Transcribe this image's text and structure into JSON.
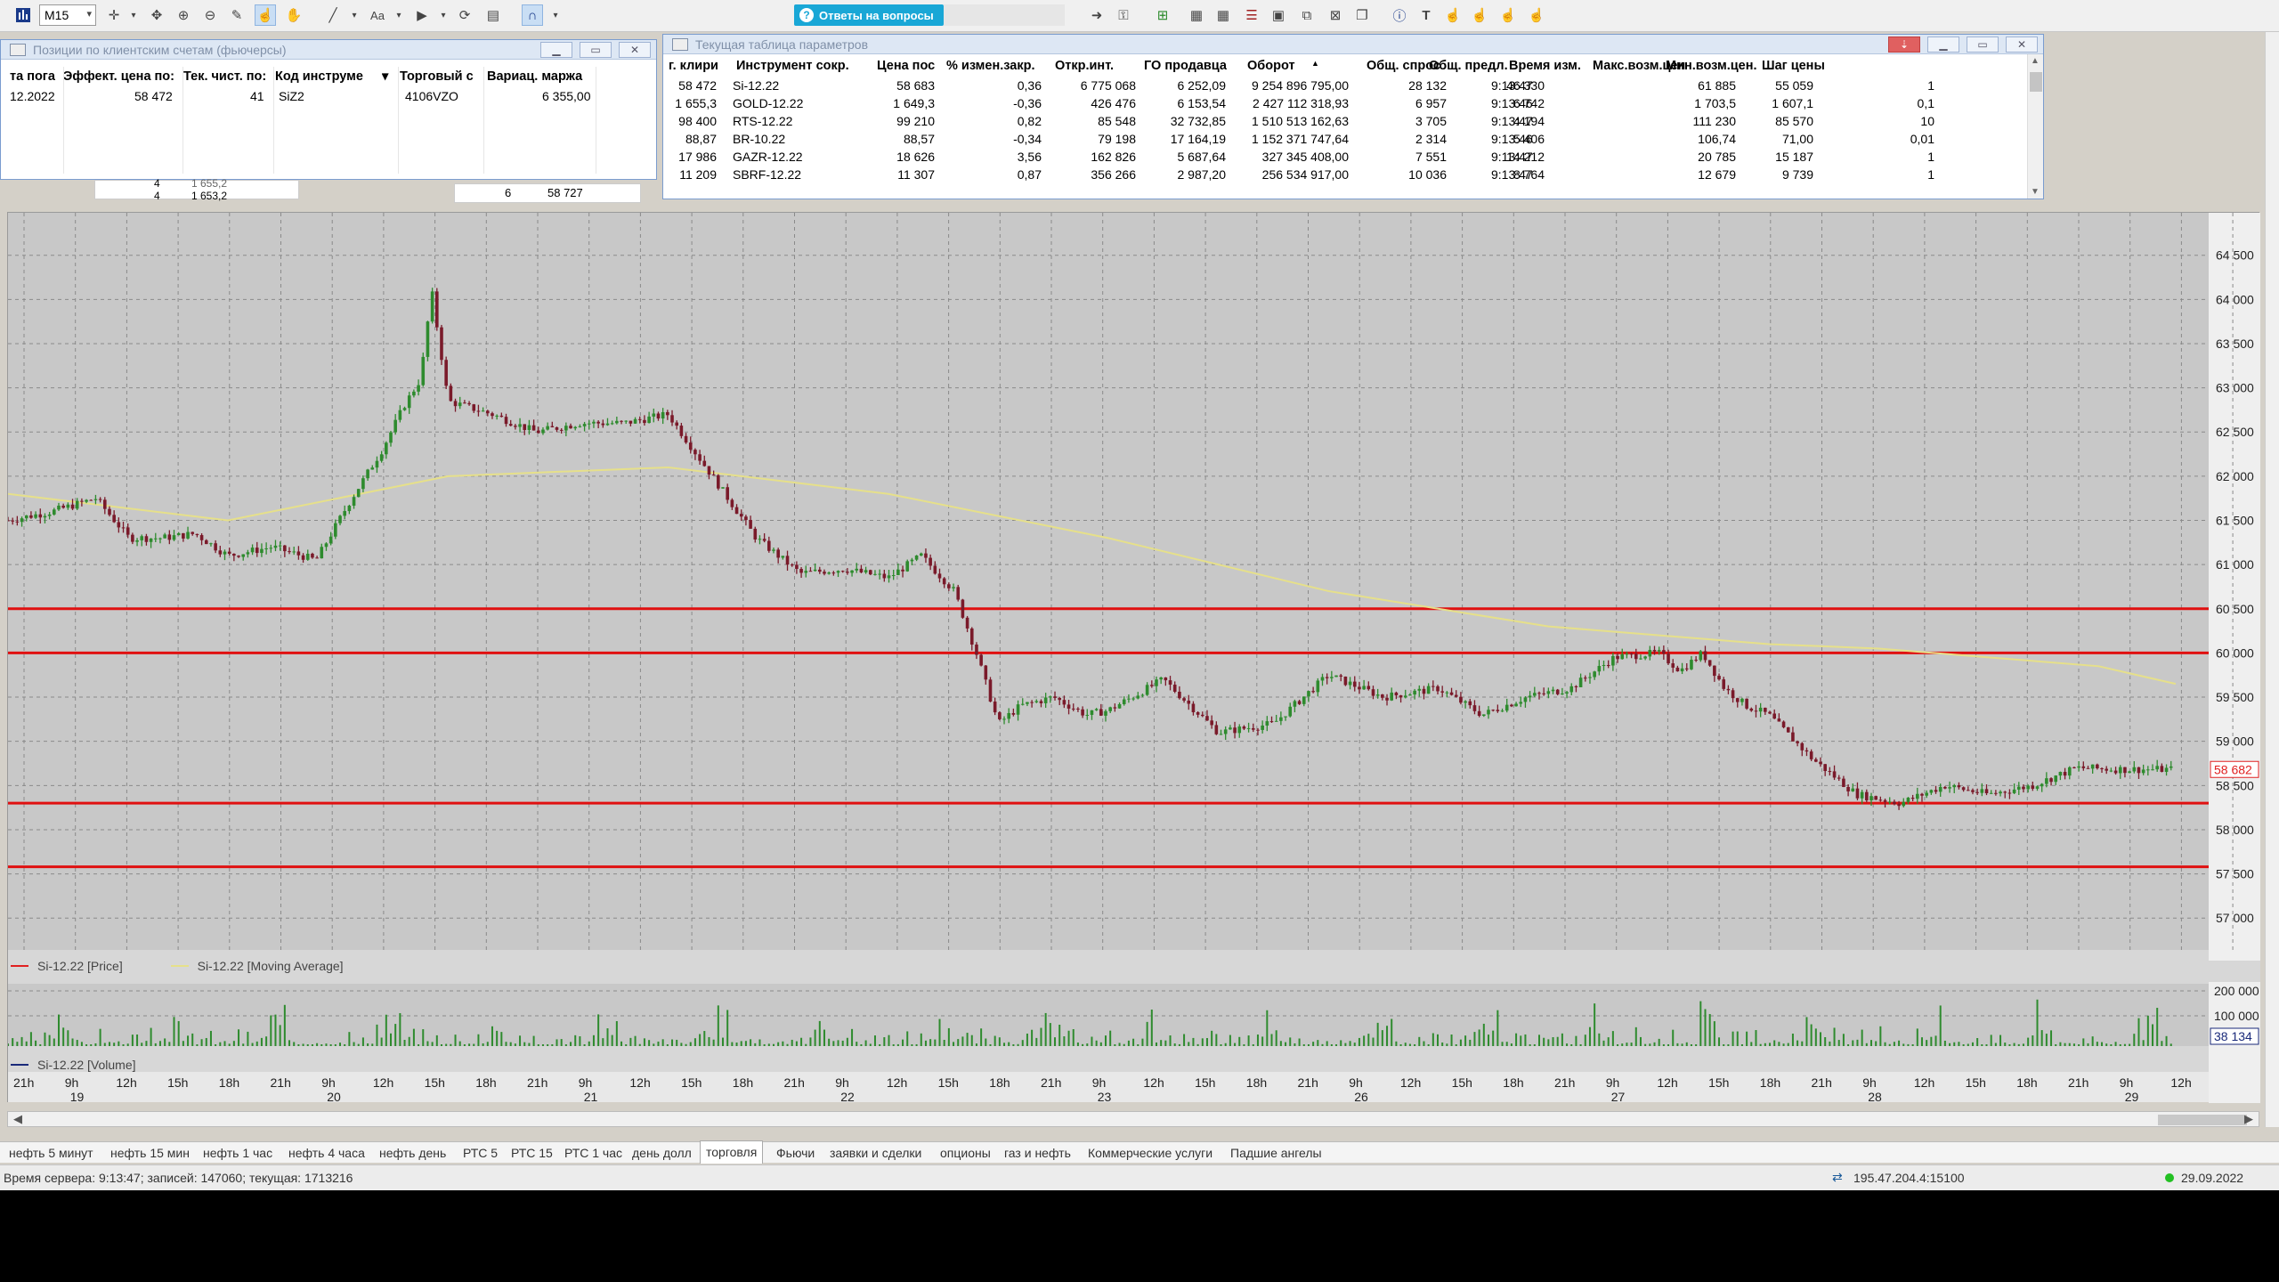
{
  "toolbar": {
    "interval": "M15",
    "answers_label": "Ответы на вопросы"
  },
  "positions": {
    "title": "Позиции по клиентским счетам (фьючерсы)",
    "columns": [
      "та пога",
      "Эффект. цена по:",
      "Тек. чист. по:",
      "Код инструме",
      "Торговый с",
      "Вариац. маржа"
    ],
    "row": [
      "12.2022",
      "58 472",
      "41",
      "SiZ2",
      "4106VZO",
      "6 355,00"
    ],
    "below": {
      "a": "4",
      "b": "1 653,2",
      "c": "6",
      "d": "58 727",
      "e": "1 655,2"
    }
  },
  "params": {
    "title": "Текущая таблица параметров",
    "columns": [
      "г. клири",
      "Инструмент сокр.",
      "Цена пос",
      "% измен.закр.",
      "Откр.инт.",
      "ГО продавца",
      "Оборот",
      "Общ. спрос",
      "Общ. предл.",
      "Время изм.",
      "Макс.возм.цен",
      "Мин.возм.цен.",
      "Шаг цены"
    ],
    "rows": [
      [
        "58 472",
        "Si-12.22",
        "58 683",
        "0,36",
        "6 775 068",
        "6 252,09",
        "9 254 896 795,00",
        "28 132",
        "46 330",
        "9:13:47",
        "61 885",
        "55 059",
        "1"
      ],
      [
        "1 655,3",
        "GOLD-12.22",
        "1 649,3",
        "-0,36",
        "426 476",
        "6 153,54",
        "2 427 112 318,93",
        "6 957",
        "6 742",
        "9:13:46",
        "1 703,5",
        "1 607,1",
        "0,1"
      ],
      [
        "98 400",
        "RTS-12.22",
        "99 210",
        "0,82",
        "85 548",
        "32 732,85",
        "1 510 513 162,63",
        "3 705",
        "4 194",
        "9:13:47",
        "111 230",
        "85 570",
        "10"
      ],
      [
        "88,87",
        "BR-10.22",
        "88,57",
        "-0,34",
        "79 198",
        "17 164,19",
        "1 152 371 747,64",
        "2 314",
        "5 406",
        "9:13:46",
        "106,74",
        "71,00",
        "0,01"
      ],
      [
        "17 986",
        "GAZR-12.22",
        "18 626",
        "3,56",
        "162 826",
        "5 687,64",
        "327 345 408,00",
        "7 551",
        "14 212",
        "9:13:47",
        "20 785",
        "15 187",
        "1"
      ],
      [
        "11 209",
        "SBRF-12.22",
        "11 307",
        "0,87",
        "356 266",
        "2 987,20",
        "256 534 917,00",
        "10 036",
        "8 764",
        "9:13:47",
        "12 679",
        "9 739",
        "1"
      ]
    ]
  },
  "chart": {
    "price_legend": "Si-12.22 [Price]",
    "ma_legend": "Si-12.22 [Moving Average]",
    "volume_legend": "Si-12.22 [Volume]",
    "current_price": "58 682",
    "current_volume": "38 134",
    "hlines": [
      60500,
      60000,
      58300,
      57580
    ],
    "colors": {
      "up": "#2e8b2e",
      "down": "#7a1a2a",
      "ma": "#e6e08a",
      "hline": "#e01010",
      "volume": "#2e8b2e"
    }
  },
  "chart_data": {
    "type": "line",
    "title": "",
    "ylabel": "",
    "xlabel": "",
    "ylim": [
      56700,
      64900
    ],
    "y_ticks": [
      "64 500",
      "64 000",
      "63 500",
      "63 000",
      "62 500",
      "62 000",
      "61 500",
      "61 000",
      "60 500",
      "60 000",
      "59 500",
      "59 000",
      "58 500",
      "58 000",
      "57 500",
      "57 000"
    ],
    "volume_ticks": [
      "200 000",
      "100 000"
    ],
    "x_day_labels": [
      "19",
      "20",
      "21",
      "22",
      "23",
      "26",
      "27",
      "28",
      "29"
    ],
    "x_hour_pattern": [
      "21h",
      "9h",
      "12h",
      "15h",
      "18h"
    ],
    "series": [
      {
        "name": "Si-12.22 [Price]",
        "x": [
          0,
          4,
          8,
          11,
          14,
          17,
          20,
          24,
          28,
          31,
          34,
          36,
          37.5,
          38.5,
          40,
          44,
          48,
          52,
          56,
          60,
          64,
          68,
          72,
          76,
          80,
          83,
          86,
          88,
          90,
          92,
          95,
          98,
          100,
          105,
          110,
          115,
          120,
          125,
          130,
          134,
          138,
          142,
          146,
          150,
          152,
          154,
          156,
          158,
          160,
          164,
          168,
          172,
          176,
          180,
          184,
          188,
          192,
          196,
          198,
          200
        ],
        "values": [
          61500,
          61600,
          61750,
          61300,
          61300,
          61350,
          61100,
          61200,
          61050,
          61700,
          62300,
          62800,
          63100,
          64100,
          62850,
          62700,
          62500,
          62600,
          62600,
          62700,
          62000,
          61300,
          60900,
          60950,
          60850,
          61100,
          60700,
          60000,
          59200,
          59400,
          59500,
          59300,
          59350,
          59700,
          59100,
          59200,
          59750,
          59500,
          59600,
          59300,
          59500,
          59600,
          59950,
          60000,
          59800,
          60000,
          59600,
          59400,
          59300,
          58800,
          58400,
          58300,
          58500,
          58400,
          58500,
          58700,
          58682,
          58682,
          58682,
          58682
        ]
      },
      {
        "name": "Si-12.22 [Moving Average]",
        "x": [
          0,
          20,
          40,
          60,
          80,
          100,
          120,
          140,
          160,
          170,
          180,
          190,
          197
        ],
        "values": [
          61800,
          61500,
          62000,
          62100,
          61800,
          61300,
          60700,
          60300,
          60100,
          60050,
          59950,
          59850,
          59650
        ]
      }
    ],
    "grid": true,
    "legend": "bottom-left"
  },
  "tabs": [
    "нефть 5 минут",
    "нефть 15 мин",
    "нефть 1 час",
    "нефть 4 часа",
    "нефть день",
    "РТС 5",
    "РТС 15",
    "РТС 1 час",
    "день долл",
    "торговля",
    "Фьючи",
    "заявки и сделки",
    "опционы",
    "газ и нефть",
    "Коммерческие услуги",
    "Падшие ангелы"
  ],
  "active_tab": "торговля",
  "status": {
    "server": "Время сервера: 9:13:47; записей: 147060; текущая: 1713216",
    "ip": "195.47.204.4:15100",
    "date": "29.09.2022"
  }
}
